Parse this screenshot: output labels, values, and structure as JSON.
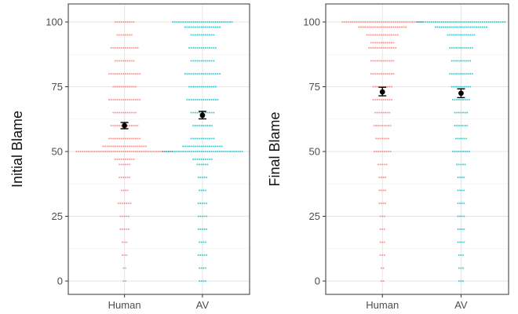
{
  "colors": {
    "human": "#F8766D",
    "av": "#00BFC4",
    "grid_major": "#e6e6e6",
    "grid_minor": "#f2f2f2",
    "panel_border": "#333333",
    "error_bar": "#000000"
  },
  "chart_data": [
    {
      "type": "dotplot",
      "title": "",
      "xlabel": "",
      "ylabel": "Initial Blame",
      "categories": [
        "Human",
        "AV"
      ],
      "ylim": [
        0,
        100
      ],
      "yticks": [
        0,
        25,
        50,
        75,
        100
      ],
      "grid": true,
      "legend": "none",
      "series": [
        {
          "category": "Human",
          "color": "#F8766D",
          "mean": 60,
          "ci": [
            58.8,
            61.2
          ],
          "distribution": [
            {
              "value": 100,
              "count": 10
            },
            {
              "value": 95,
              "count": 8
            },
            {
              "value": 90,
              "count": 14
            },
            {
              "value": 85,
              "count": 10
            },
            {
              "value": 80,
              "count": 16
            },
            {
              "value": 75,
              "count": 12
            },
            {
              "value": 70,
              "count": 16
            },
            {
              "value": 65,
              "count": 12
            },
            {
              "value": 60,
              "count": 14
            },
            {
              "value": 55,
              "count": 16
            },
            {
              "value": 52,
              "count": 22
            },
            {
              "value": 50,
              "count": 48
            },
            {
              "value": 47,
              "count": 10
            },
            {
              "value": 45,
              "count": 6
            },
            {
              "value": 40,
              "count": 6
            },
            {
              "value": 35,
              "count": 4
            },
            {
              "value": 30,
              "count": 7
            },
            {
              "value": 25,
              "count": 5
            },
            {
              "value": 20,
              "count": 5
            },
            {
              "value": 15,
              "count": 3
            },
            {
              "value": 10,
              "count": 3
            },
            {
              "value": 5,
              "count": 2
            },
            {
              "value": 0,
              "count": 2
            }
          ]
        },
        {
          "category": "AV",
          "color": "#00BFC4",
          "mean": 64,
          "ci": [
            62.6,
            65.5
          ],
          "distribution": [
            {
              "value": 100,
              "count": 30
            },
            {
              "value": 98,
              "count": 18
            },
            {
              "value": 95,
              "count": 12
            },
            {
              "value": 90,
              "count": 14
            },
            {
              "value": 85,
              "count": 12
            },
            {
              "value": 80,
              "count": 18
            },
            {
              "value": 75,
              "count": 14
            },
            {
              "value": 70,
              "count": 16
            },
            {
              "value": 65,
              "count": 12
            },
            {
              "value": 60,
              "count": 10
            },
            {
              "value": 55,
              "count": 12
            },
            {
              "value": 52,
              "count": 20
            },
            {
              "value": 50,
              "count": 40
            },
            {
              "value": 47,
              "count": 10
            },
            {
              "value": 45,
              "count": 6
            },
            {
              "value": 40,
              "count": 5
            },
            {
              "value": 35,
              "count": 4
            },
            {
              "value": 30,
              "count": 5
            },
            {
              "value": 25,
              "count": 5
            },
            {
              "value": 20,
              "count": 5
            },
            {
              "value": 15,
              "count": 4
            },
            {
              "value": 10,
              "count": 5
            },
            {
              "value": 5,
              "count": 4
            },
            {
              "value": 0,
              "count": 4
            }
          ]
        }
      ]
    },
    {
      "type": "dotplot",
      "title": "",
      "xlabel": "",
      "ylabel": "Final Blame",
      "categories": [
        "Human",
        "AV"
      ],
      "ylim": [
        0,
        100
      ],
      "yticks": [
        0,
        25,
        50,
        75,
        100
      ],
      "grid": true,
      "legend": "none",
      "series": [
        {
          "category": "Human",
          "color": "#F8766D",
          "mean": 73,
          "ci": [
            71.5,
            74.8
          ],
          "distribution": [
            {
              "value": 100,
              "count": 40
            },
            {
              "value": 98,
              "count": 24
            },
            {
              "value": 95,
              "count": 16
            },
            {
              "value": 92,
              "count": 12
            },
            {
              "value": 90,
              "count": 14
            },
            {
              "value": 85,
              "count": 12
            },
            {
              "value": 80,
              "count": 12
            },
            {
              "value": 75,
              "count": 10
            },
            {
              "value": 70,
              "count": 10
            },
            {
              "value": 65,
              "count": 8
            },
            {
              "value": 60,
              "count": 9
            },
            {
              "value": 55,
              "count": 7
            },
            {
              "value": 50,
              "count": 9
            },
            {
              "value": 45,
              "count": 5
            },
            {
              "value": 40,
              "count": 4
            },
            {
              "value": 35,
              "count": 4
            },
            {
              "value": 30,
              "count": 4
            },
            {
              "value": 25,
              "count": 3
            },
            {
              "value": 20,
              "count": 3
            },
            {
              "value": 15,
              "count": 3
            },
            {
              "value": 10,
              "count": 3
            },
            {
              "value": 5,
              "count": 2
            },
            {
              "value": 0,
              "count": 2
            }
          ]
        },
        {
          "category": "AV",
          "color": "#00BFC4",
          "mean": 72.5,
          "ci": [
            70.8,
            74.2
          ],
          "distribution": [
            {
              "value": 100,
              "count": 44
            },
            {
              "value": 98,
              "count": 26
            },
            {
              "value": 95,
              "count": 14
            },
            {
              "value": 90,
              "count": 12
            },
            {
              "value": 85,
              "count": 10
            },
            {
              "value": 80,
              "count": 12
            },
            {
              "value": 75,
              "count": 10
            },
            {
              "value": 70,
              "count": 9
            },
            {
              "value": 65,
              "count": 7
            },
            {
              "value": 60,
              "count": 7
            },
            {
              "value": 55,
              "count": 6
            },
            {
              "value": 50,
              "count": 9
            },
            {
              "value": 45,
              "count": 5
            },
            {
              "value": 40,
              "count": 4
            },
            {
              "value": 35,
              "count": 4
            },
            {
              "value": 30,
              "count": 4
            },
            {
              "value": 25,
              "count": 4
            },
            {
              "value": 20,
              "count": 4
            },
            {
              "value": 15,
              "count": 4
            },
            {
              "value": 10,
              "count": 3
            },
            {
              "value": 5,
              "count": 3
            },
            {
              "value": 0,
              "count": 3
            }
          ]
        }
      ]
    }
  ]
}
